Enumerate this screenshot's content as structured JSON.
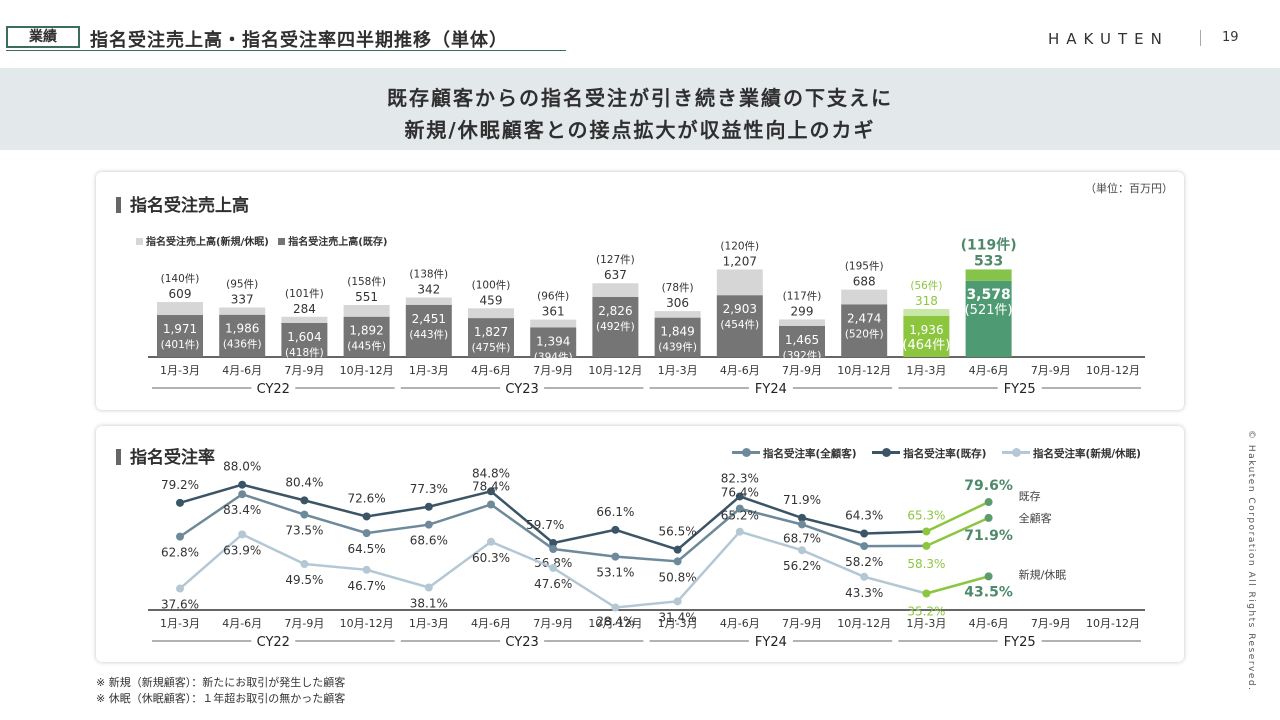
{
  "header": {
    "tag": "業績",
    "title": "指名受注売上高・指名受注率四半期推移（単体）",
    "logo": "HAKUTEN",
    "page_number": "19"
  },
  "banner": {
    "line1": "既存顧客からの指名受注が引き続き業績の下支えに",
    "line2": "新規/休眠顧客との接点拡大が収益性向上のカギ"
  },
  "sales_panel": {
    "title": "指名受注売上高",
    "unit": "（単位：百万円）",
    "legend_new": "指名受注売上高(新規/休眠)",
    "legend_existing": "指名受注売上高(既存)"
  },
  "rate_panel": {
    "title": "指名受注率",
    "legend_all": "指名受注率(全顧客)",
    "legend_existing": "指名受注率(既存)",
    "legend_new": "指名受注率(新規/休眠)",
    "end_label_existing": "既存",
    "end_label_all": "全顧客",
    "end_label_new": "新規/休眠"
  },
  "footnotes": [
    "※ 新規（新規顧客）：新たにお取引が発生した顧客",
    "※ 休眠（休眠顧客）：１年超お取引の無かった顧客"
  ],
  "copyright": "© Hakuten Corporation All Rights Reserved.",
  "colors": {
    "existing_bar": "#757575",
    "new_bar": "#d6d6d6",
    "fy25_existing_q1": "#8cc63f",
    "fy25_new_q1": "#c9e7a7",
    "fy25_existing_q2": "#4e9a72",
    "fy25_new_q2": "#86c34a",
    "line_all": "#6e8a9a",
    "line_existing": "#3b5566",
    "line_new": "#b3c8d4",
    "fy25_line": "#8cc63f",
    "fy25_text_dark": "#4e8a6a"
  },
  "chart_data": [
    {
      "type": "bar",
      "title": "指名受注売上高",
      "stacked": true,
      "categories": [
        "1月-3月",
        "4月-6月",
        "7月-9月",
        "10月-12月",
        "1月-3月",
        "4月-6月",
        "7月-9月",
        "10月-12月",
        "1月-3月",
        "4月-6月",
        "7月-9月",
        "10月-12月",
        "1月-3月",
        "4月-6月",
        "7月-9月",
        "10月-12月"
      ],
      "groups": [
        {
          "label": "CY22",
          "from": 0,
          "to": 3
        },
        {
          "label": "CY23",
          "from": 4,
          "to": 7
        },
        {
          "label": "FY24",
          "from": 8,
          "to": 11
        },
        {
          "label": "FY25",
          "from": 12,
          "to": 15
        }
      ],
      "series": [
        {
          "name": "指名受注売上高(既存)",
          "values": [
            1971,
            1986,
            1604,
            1892,
            2451,
            1827,
            1394,
            2826,
            1849,
            2903,
            1465,
            2474,
            1936,
            3578,
            null,
            null
          ],
          "counts": [
            "(401件)",
            "(436件)",
            "(418件)",
            "(445件)",
            "(443件)",
            "(475件)",
            "(394件)",
            "(492件)",
            "(439件)",
            "(454件)",
            "(392件)",
            "(520件)",
            "(464件)",
            "(521件)",
            null,
            null
          ]
        },
        {
          "name": "指名受注売上高(新規/休眠)",
          "values": [
            609,
            337,
            284,
            551,
            342,
            459,
            361,
            637,
            306,
            1207,
            299,
            688,
            318,
            533,
            null,
            null
          ],
          "counts": [
            "(140件)",
            "(95件)",
            "(101件)",
            "(158件)",
            "(138件)",
            "(100件)",
            "(96件)",
            "(127件)",
            "(78件)",
            "(120件)",
            "(117件)",
            "(195件)",
            "(56件)",
            "(119件)",
            null,
            null
          ]
        }
      ]
    },
    {
      "type": "line",
      "title": "指名受注率",
      "unit": "%",
      "categories": [
        "1月-3月",
        "4月-6月",
        "7月-9月",
        "10月-12月",
        "1月-3月",
        "4月-6月",
        "7月-9月",
        "10月-12月",
        "1月-3月",
        "4月-6月",
        "7月-9月",
        "10月-12月",
        "1月-3月",
        "4月-6月",
        "7月-9月",
        "10月-12月"
      ],
      "groups": [
        {
          "label": "CY22",
          "from": 0,
          "to": 3
        },
        {
          "label": "CY23",
          "from": 4,
          "to": 7
        },
        {
          "label": "FY24",
          "from": 8,
          "to": 11
        },
        {
          "label": "FY25",
          "from": 12,
          "to": 15
        }
      ],
      "series": [
        {
          "name": "指名受注率(既存)",
          "values": [
            79.2,
            88.0,
            80.4,
            72.6,
            77.3,
            84.8,
            59.7,
            66.1,
            56.5,
            82.3,
            71.9,
            64.3,
            65.3,
            79.6,
            null,
            null
          ]
        },
        {
          "name": "指名受注率(全顧客)",
          "values": [
            62.8,
            83.4,
            73.5,
            64.5,
            68.6,
            78.4,
            56.8,
            53.1,
            50.8,
            76.4,
            68.7,
            58.2,
            58.3,
            71.9,
            null,
            null
          ]
        },
        {
          "name": "指名受注率(新規/休眠)",
          "values": [
            37.6,
            63.9,
            49.5,
            46.7,
            38.1,
            60.3,
            47.6,
            28.4,
            31.4,
            65.2,
            56.2,
            43.3,
            35.2,
            43.5,
            null,
            null
          ]
        }
      ]
    }
  ]
}
